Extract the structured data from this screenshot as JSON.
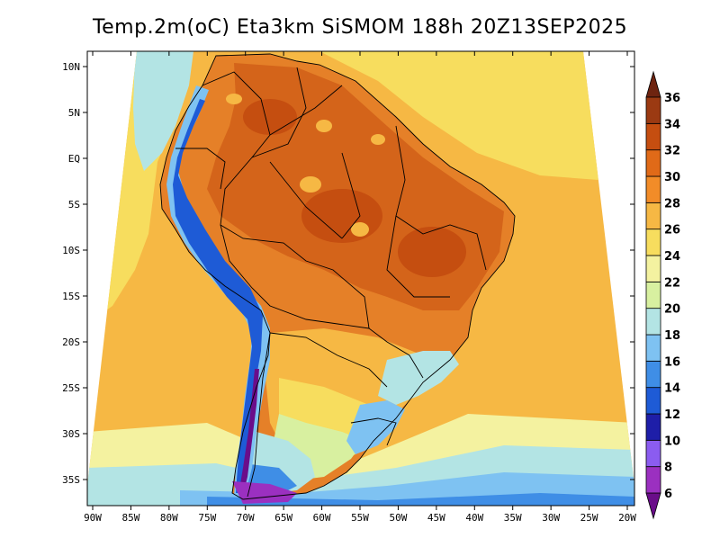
{
  "title": "Temp.2m(oC) Eta3km SiSMOM 188h 20Z13SEP2025",
  "map": {
    "lon_labels": [
      "90W",
      "85W",
      "80W",
      "75W",
      "70W",
      "65W",
      "60W",
      "55W",
      "50W",
      "45W",
      "40W",
      "35W",
      "30W",
      "25W",
      "20W"
    ],
    "lat_labels": [
      "10N",
      "5N",
      "EQ",
      "5S",
      "10S",
      "15S",
      "20S",
      "25S",
      "30S",
      "35S"
    ]
  },
  "colorbar": {
    "labels": [
      "6",
      "8",
      "10",
      "12",
      "14",
      "16",
      "18",
      "20",
      "22",
      "24",
      "26",
      "28",
      "30",
      "32",
      "34",
      "36"
    ],
    "colors": [
      "#6a0d8a",
      "#9b30c0",
      "#8b5cf0",
      "#1e1ea8",
      "#1e5bd6",
      "#3f8ee6",
      "#7ec2f2",
      "#b3e4e4",
      "#d8f0a0",
      "#f4f2a0",
      "#f7dd5e",
      "#f6b844",
      "#f28c28",
      "#e06a18",
      "#c54e10",
      "#9b3a12",
      "#6e2410"
    ]
  },
  "palette": {
    "ocean_warm": "#f6b844",
    "ocean_mid": "#f7dd5e",
    "land_hot": "#d4641a",
    "land_warm": "#e58028",
    "cool_light": "#b3e4e4",
    "cool_blue": "#7ec2f2",
    "cold": "#1e5bd6",
    "very_cold": "#6a0d8a",
    "border": "#000000"
  }
}
